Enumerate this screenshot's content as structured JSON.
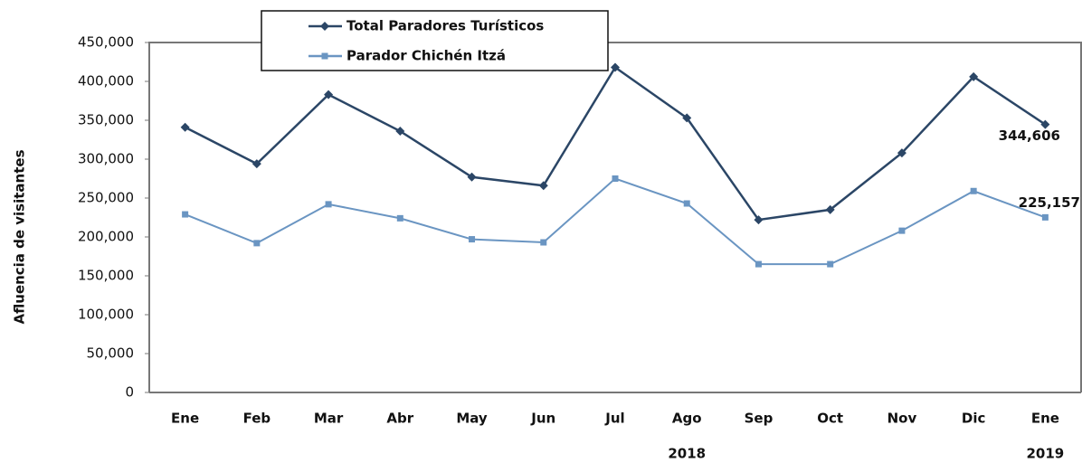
{
  "chart_data": {
    "type": "line",
    "y_label": "Afluencia de visitantes",
    "categories": [
      "Ene",
      "Feb",
      "Mar",
      "Abr",
      "May",
      "Jun",
      "Jul",
      "Ago",
      "Sep",
      "Oct",
      "Nov",
      "Dic",
      "Ene"
    ],
    "categories2": [
      null,
      null,
      null,
      null,
      null,
      null,
      null,
      "2018",
      null,
      null,
      null,
      null,
      "2019"
    ],
    "series": [
      {
        "name": "Total Paradores Turísticos",
        "color": "#2b4666",
        "marker": "diamond",
        "values": [
          341000,
          294000,
          383000,
          336000,
          277000,
          266000,
          418000,
          353000,
          222000,
          235000,
          308000,
          406000,
          344606
        ],
        "value_labels": [
          null,
          null,
          null,
          null,
          null,
          null,
          null,
          null,
          null,
          null,
          null,
          null,
          "344,606"
        ]
      },
      {
        "name": "Parador Chichén Itzá",
        "color": "#6a95c2",
        "marker": "square",
        "values": [
          229000,
          192000,
          242000,
          224000,
          197000,
          193000,
          275000,
          243000,
          165000,
          165000,
          208000,
          259000,
          225157
        ],
        "value_labels": [
          null,
          null,
          null,
          null,
          null,
          null,
          null,
          null,
          null,
          null,
          null,
          null,
          "225,157"
        ]
      }
    ],
    "ylim": [
      0,
      450000
    ],
    "yticks": [
      0,
      {
        "value": 50000,
        "label": "50,000"
      },
      {
        "value": 100000,
        "label": "100,000"
      },
      {
        "value": 150000,
        "label": "150,000"
      },
      {
        "value": 200000,
        "label": "200,000"
      },
      {
        "value": 250000,
        "label": "250,000"
      },
      {
        "value": 300000,
        "label": "300,000"
      },
      {
        "value": 350000,
        "label": "350,000"
      },
      {
        "value": 400000,
        "label": "400,000"
      },
      {
        "value": 450000,
        "label": "450,000"
      }
    ],
    "grid": false,
    "legend": "top"
  }
}
